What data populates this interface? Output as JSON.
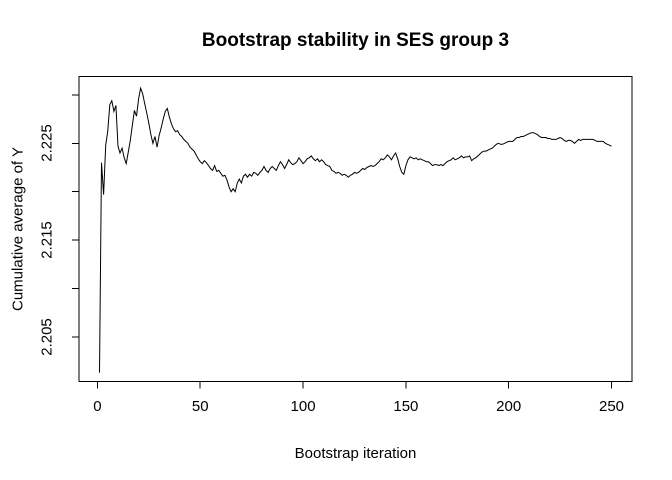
{
  "chart_data": {
    "type": "line",
    "title": "Bootstrap stability in SES group 3",
    "xlabel": "Bootstrap iteration",
    "ylabel": "Cumulative average of Y",
    "x_ticks": [
      0,
      50,
      100,
      150,
      200,
      250
    ],
    "y_ticks": [
      2.205,
      2.21,
      2.215,
      2.22,
      2.225,
      2.23
    ],
    "y_tick_labels": [
      "2.205",
      "",
      "2.215",
      "",
      "2.225",
      ""
    ],
    "xlim": [
      -8.96,
      259.96
    ],
    "ylim": [
      2.2004,
      2.2319
    ],
    "grid": false,
    "legend": false,
    "background_color": "#ffffff",
    "line_color": "#000000",
    "series": [
      {
        "name": "cumulative-average-of-Y",
        "x_start": 1,
        "x_step": 1,
        "values": [
          2.2013,
          2.223,
          2.2197,
          2.2248,
          2.2262,
          2.229,
          2.2294,
          2.2283,
          2.2289,
          2.2247,
          2.224,
          2.2245,
          2.2235,
          2.2229,
          2.2241,
          2.2253,
          2.2269,
          2.2284,
          2.2278,
          2.2296,
          2.2307,
          2.2301,
          2.2291,
          2.2281,
          2.2271,
          2.2259,
          2.225,
          2.2257,
          2.2246,
          2.2258,
          2.2266,
          2.2275,
          2.2283,
          2.2286,
          2.2277,
          2.227,
          2.2265,
          2.2262,
          2.2263,
          2.2259,
          2.2257,
          2.2254,
          2.2252,
          2.225,
          2.2246,
          2.2244,
          2.2242,
          2.2238,
          2.2234,
          2.2231,
          2.2229,
          2.2232,
          2.223,
          2.2227,
          2.2224,
          2.2222,
          2.2227,
          2.2221,
          2.2222,
          2.2219,
          2.2216,
          2.2217,
          2.2212,
          2.2205,
          2.22,
          2.2203,
          2.22,
          2.2209,
          2.2213,
          2.2209,
          2.2216,
          2.2218,
          2.2215,
          2.2218,
          2.2216,
          2.222,
          2.2219,
          2.2217,
          2.222,
          2.2222,
          2.2226,
          2.2222,
          2.222,
          2.2224,
          2.2226,
          2.2224,
          2.2222,
          2.2227,
          2.2231,
          2.2228,
          2.2224,
          2.2228,
          2.2233,
          2.223,
          2.2228,
          2.2229,
          2.2231,
          2.2235,
          2.2232,
          2.2229,
          2.2231,
          2.2234,
          2.2235,
          2.2237,
          2.2234,
          2.2232,
          2.2234,
          2.2231,
          2.2233,
          2.2231,
          2.2228,
          2.2227,
          2.2226,
          2.2222,
          2.2221,
          2.2219,
          2.222,
          2.2219,
          2.2217,
          2.2218,
          2.2217,
          2.2215,
          2.2217,
          2.2218,
          2.222,
          2.2219,
          2.222,
          2.2222,
          2.2224,
          2.2223,
          2.2225,
          2.2226,
          2.2227,
          2.2226,
          2.2227,
          2.2229,
          2.2231,
          2.2234,
          2.2233,
          2.2235,
          2.2238,
          2.2236,
          2.2233,
          2.2237,
          2.224,
          2.2234,
          2.2226,
          2.222,
          2.2218,
          2.2227,
          2.2233,
          2.2236,
          2.2235,
          2.2234,
          2.2235,
          2.2233,
          2.2234,
          2.2233,
          2.2232,
          2.2231,
          2.2231,
          2.2229,
          2.2227,
          2.2228,
          2.2228,
          2.2227,
          2.2228,
          2.2227,
          2.2229,
          2.2231,
          2.2232,
          2.2233,
          2.2235,
          2.2233,
          2.2234,
          2.2235,
          2.2237,
          2.2235,
          2.2236,
          2.2236,
          2.2237,
          2.2232,
          2.2234,
          2.2235,
          2.2237,
          2.2239,
          2.2241,
          2.2242,
          2.2242,
          2.2243,
          2.2244,
          2.2245,
          2.2247,
          2.2249,
          2.225,
          2.2249,
          2.2249,
          2.225,
          2.2251,
          2.2252,
          2.2252,
          2.2252,
          2.2254,
          2.2256,
          2.2256,
          2.2257,
          2.2257,
          2.2258,
          2.2259,
          2.226,
          2.2261,
          2.2261,
          2.226,
          2.2259,
          2.2257,
          2.2256,
          2.2256,
          2.2256,
          2.2255,
          2.2255,
          2.2254,
          2.2254,
          2.2254,
          2.2255,
          2.2256,
          2.2255,
          2.2253,
          2.2252,
          2.2253,
          2.2253,
          2.2252,
          2.225,
          2.2252,
          2.2254,
          2.2253,
          2.2254,
          2.2254,
          2.2254,
          2.2254,
          2.2254,
          2.2254,
          2.2253,
          2.2252,
          2.2252,
          2.2252,
          2.2252,
          2.225,
          2.2249,
          2.2248,
          2.2247
        ]
      }
    ]
  }
}
